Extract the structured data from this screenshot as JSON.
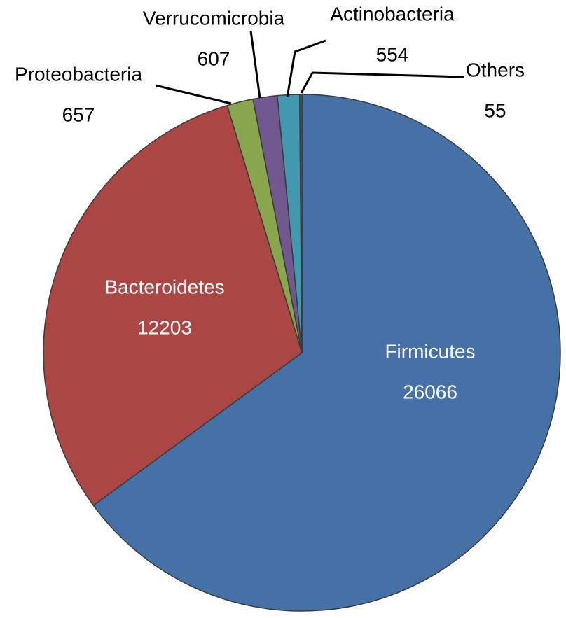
{
  "chart_data": {
    "type": "pie",
    "categories": [
      "Firmicutes",
      "Bacteroidetes",
      "Proteobacteria",
      "Verrucomicrobia",
      "Actinobacteria",
      "Others"
    ],
    "values": [
      26066,
      12203,
      657,
      607,
      554,
      55
    ],
    "colors": [
      "#4571a7",
      "#aa4643",
      "#89a54e",
      "#71588f",
      "#4198af",
      "#6b6b6b"
    ]
  }
}
